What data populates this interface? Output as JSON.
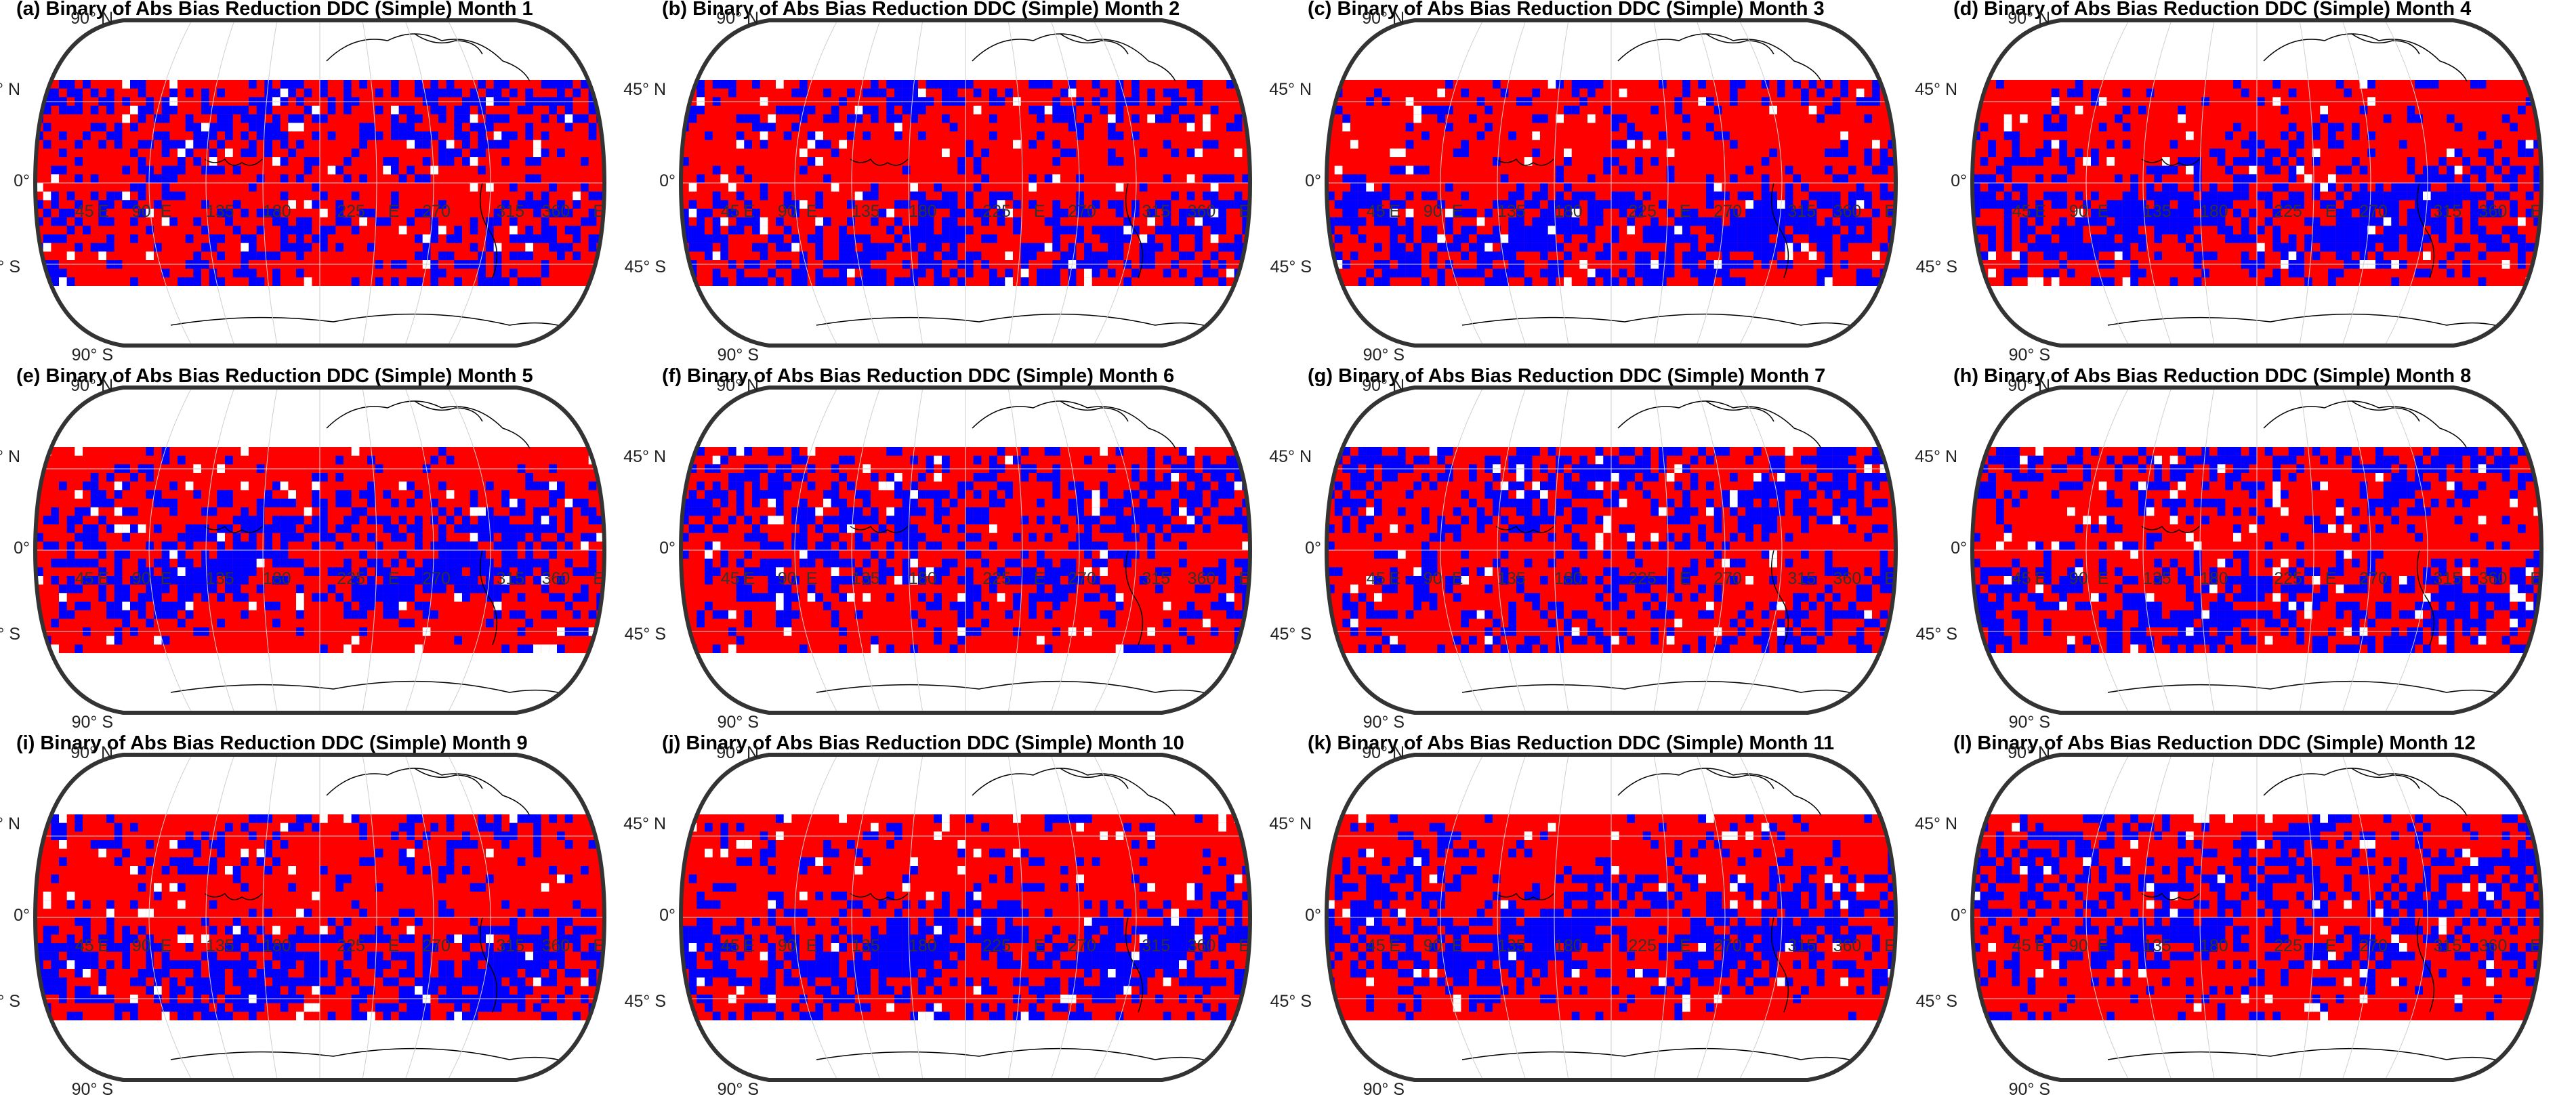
{
  "figure": {
    "panels": [
      {
        "title": "(a) Binary of Abs Bias Reduction DDC (Simple) Month 1",
        "month": 1
      },
      {
        "title": "(b) Binary of Abs Bias Reduction DDC (Simple) Month 2",
        "month": 2
      },
      {
        "title": "(c) Binary of Abs Bias Reduction DDC (Simple) Month 3",
        "month": 3
      },
      {
        "title": "(d) Binary of Abs Bias Reduction DDC (Simple) Month 4",
        "month": 4
      },
      {
        "title": "(e) Binary of Abs Bias Reduction DDC (Simple) Month 5",
        "month": 5
      },
      {
        "title": "(f) Binary of Abs Bias Reduction DDC (Simple) Month 6",
        "month": 6
      },
      {
        "title": "(g) Binary of Abs Bias Reduction DDC (Simple) Month 7",
        "month": 7
      },
      {
        "title": "(h) Binary of Abs Bias Reduction DDC (Simple) Month 8",
        "month": 8
      },
      {
        "title": "(i) Binary of Abs Bias Reduction DDC (Simple) Month 9",
        "month": 9
      },
      {
        "title": "(j) Binary of Abs Bias Reduction DDC (Simple) Month 10",
        "month": 10
      },
      {
        "title": "(k) Binary of Abs Bias Reduction DDC (Simple) Month 11",
        "month": 11
      },
      {
        "title": "(l) Binary of Abs Bias Reduction DDC (Simple) Month 12",
        "month": 12
      }
    ],
    "lat_labels": [
      "90° N",
      "45° N",
      "0°",
      "45° S",
      "90° S"
    ],
    "lon_labels": [
      "45",
      "E",
      "90",
      "E",
      "135",
      "180",
      "225",
      "E",
      "270",
      "315",
      "360",
      "E"
    ]
  },
  "chart_data": {
    "type": "heatmap",
    "projection": "robinson-like",
    "lat_range": [
      -60,
      60
    ],
    "lon_range": [
      0,
      360
    ],
    "colors": {
      "reduced": "#ff0000",
      "not_reduced": "#0000ff",
      "missing": "#ffffff",
      "coast": "#000000",
      "frame": "#333333"
    },
    "panel_count": 12,
    "grid": true
  }
}
